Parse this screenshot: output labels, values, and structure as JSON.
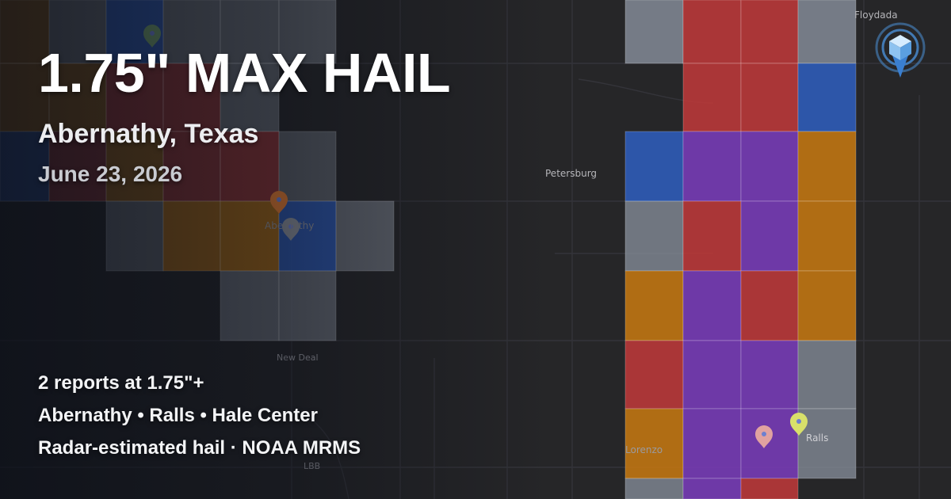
{
  "headline": "1.75\" MAX HAIL",
  "location": "Abernathy, Texas",
  "date": "June 23, 2026",
  "info": {
    "reports": "2 reports at 1.75\"+",
    "places": "Abernathy • Ralls • Hale Center",
    "source": "Radar-estimated hail · NOAA MRMS"
  },
  "map": {
    "place_labels": {
      "floydada": "Floydada",
      "petersburg": "Petersburg",
      "abernathy": "Abernathy",
      "new_deal": "New Deal",
      "lorenzo": "Lorenzo",
      "ralls": "Ralls",
      "lbb": "LBB"
    },
    "legend_colors": {
      "gray": "#8a919d",
      "blue": "#2f5fc0",
      "orange": "#c97a10",
      "red": "#c23a3a",
      "purple": "#7b3dbd"
    }
  },
  "icons": {
    "logo": "hail-radar-logo-icon",
    "pin": "map-pin-icon"
  }
}
